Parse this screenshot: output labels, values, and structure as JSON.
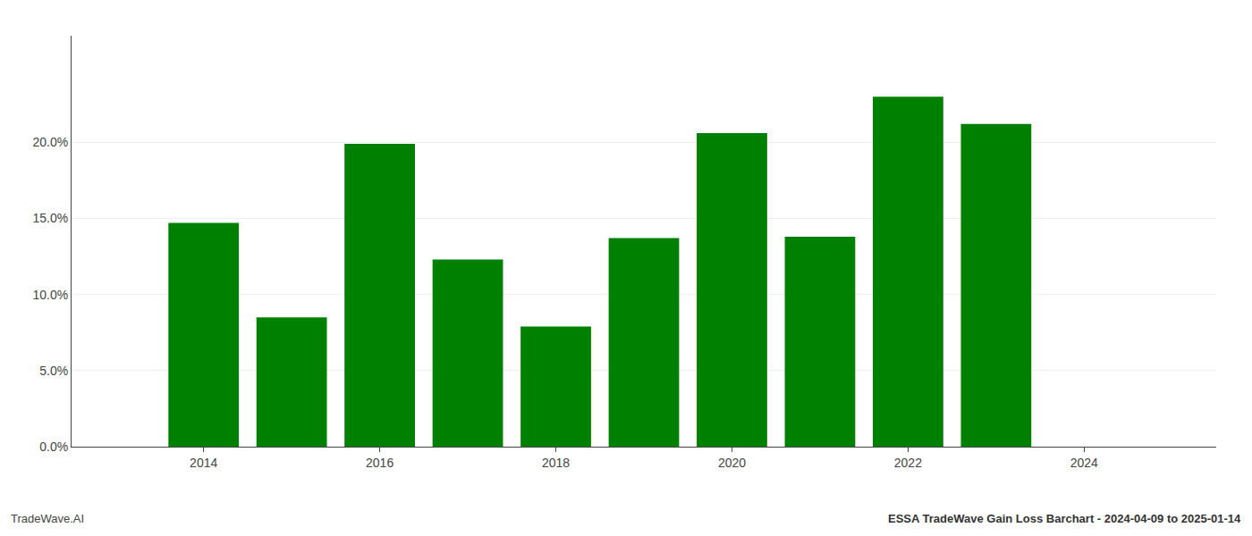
{
  "chart_data": {
    "type": "bar",
    "x": [
      2014,
      2015,
      2016,
      2017,
      2018,
      2019,
      2020,
      2021,
      2022,
      2023
    ],
    "values": [
      0.147,
      0.085,
      0.199,
      0.123,
      0.079,
      0.137,
      0.206,
      0.138,
      0.23,
      0.212
    ],
    "color": "#008000",
    "xlim": [
      2012.5,
      2025.5
    ],
    "xticks": [
      2014,
      2016,
      2018,
      2020,
      2022,
      2024
    ],
    "ylim": [
      0,
      0.27
    ],
    "yticks": [
      {
        "value": 0,
        "label": "0.0%"
      },
      {
        "value": 0.05,
        "label": "5.0%"
      },
      {
        "value": 0.1,
        "label": "10.0%"
      },
      {
        "value": 0.15,
        "label": "15.0%"
      },
      {
        "value": 0.2,
        "label": "20.0%"
      }
    ],
    "grid": true,
    "annotations": [
      "TradeWave.AI",
      "ESSA TradeWave Gain Loss Barchart - 2024-04-09 to 2025-01-14"
    ]
  }
}
